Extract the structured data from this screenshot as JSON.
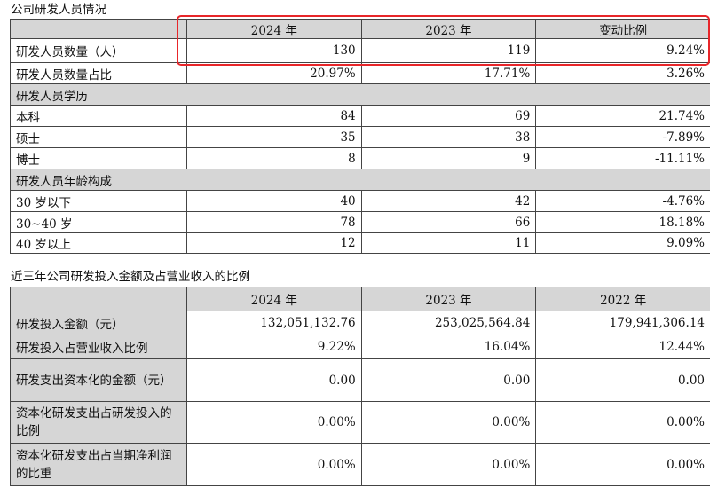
{
  "table1": {
    "caption": "公司研发人员情况",
    "headers": [
      "",
      "2024 年",
      "2023 年",
      "变动比例"
    ],
    "rows": [
      {
        "type": "data",
        "label": "研发人员数量（人）",
        "values": [
          "130",
          "119",
          "9.24%"
        ]
      },
      {
        "type": "data",
        "label": "研发人员数量占比",
        "values": [
          "20.97%",
          "17.71%",
          "3.26%"
        ]
      },
      {
        "type": "section",
        "label": "研发人员学历"
      },
      {
        "type": "data",
        "label": "本科",
        "values": [
          "84",
          "69",
          "21.74%"
        ]
      },
      {
        "type": "data",
        "label": "硕士",
        "values": [
          "35",
          "38",
          "-7.89%"
        ]
      },
      {
        "type": "data",
        "label": "博士",
        "values": [
          "8",
          "9",
          "-11.11%"
        ]
      },
      {
        "type": "section",
        "label": "研发人员年龄构成"
      },
      {
        "type": "data",
        "label": "30 岁以下",
        "values": [
          "40",
          "42",
          "-4.76%"
        ]
      },
      {
        "type": "data",
        "label": "30~40 岁",
        "values": [
          "78",
          "66",
          "18.18%"
        ]
      },
      {
        "type": "data",
        "label": "40 岁以上",
        "values": [
          "12",
          "11",
          "9.09%"
        ]
      }
    ]
  },
  "table2": {
    "caption": "近三年公司研发投入金额及占营业收入的比例",
    "headers": [
      "",
      "2024 年",
      "2023 年",
      "2022 年"
    ],
    "rows": [
      {
        "label": "研发投入金额（元）",
        "values": [
          "132,051,132.76",
          "253,025,564.84",
          "179,941,306.14"
        ]
      },
      {
        "label": "研发投入占营业收入比例",
        "values": [
          "9.22%",
          "16.04%",
          "12.44%"
        ]
      },
      {
        "label": "研发支出资本化的金额（元）",
        "values": [
          "0.00",
          "0.00",
          "0.00"
        ]
      },
      {
        "label": "资本化研发支出占研发投入的比例",
        "values": [
          "0.00%",
          "0.00%",
          "0.00%"
        ]
      },
      {
        "label": "资本化研发支出占当期净利润的比重",
        "values": [
          "0.00%",
          "0.00%",
          "0.00%"
        ]
      }
    ]
  },
  "highlight_color": "#e8262a"
}
